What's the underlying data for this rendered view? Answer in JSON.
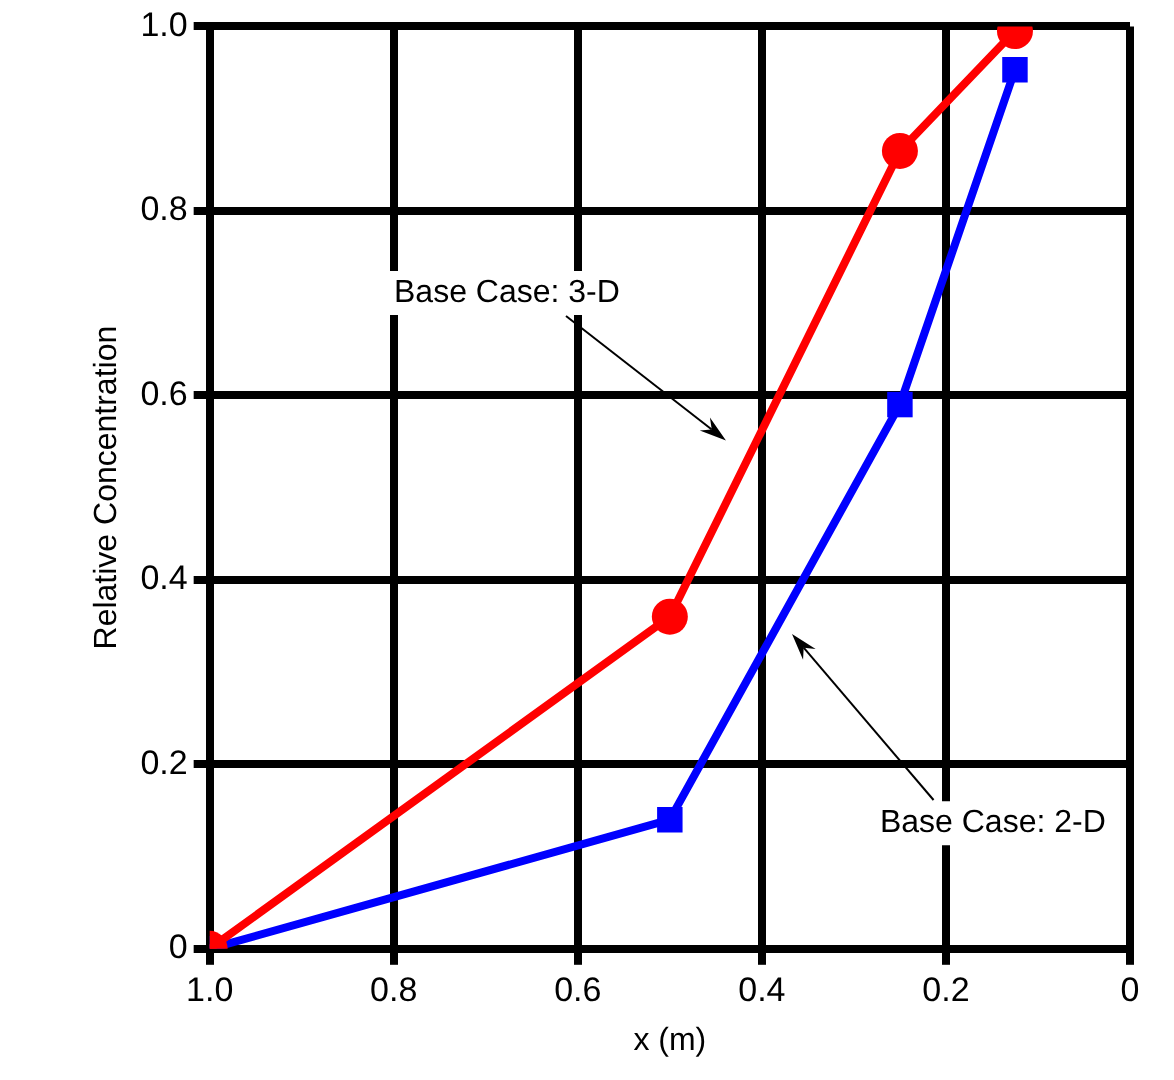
{
  "chart_data": {
    "type": "line",
    "xlabel": "x (m)",
    "ylabel": "Relative Concentration",
    "xlim": [
      1,
      0
    ],
    "ylim": [
      0,
      1
    ],
    "xticks": [
      {
        "value": 1,
        "label": "1.0"
      },
      0.8,
      0.6,
      0.4,
      0.2,
      0
    ],
    "yticks": [
      0,
      0.2,
      0.4,
      0.6,
      0.8,
      {
        "value": 1,
        "label": "1.0"
      }
    ],
    "series": [
      {
        "color": "#ff0000",
        "marker": "circle",
        "x": [
          1,
          0.5,
          0.25,
          0.125
        ],
        "values": [
          0,
          0.36,
          0.865,
          0.995
        ]
      },
      {
        "color": "#0000ff",
        "marker": "square",
        "x": [
          1,
          0.5,
          0.25,
          0.125
        ],
        "values": [
          0,
          0.14,
          0.59,
          0.953
        ]
      }
    ],
    "annotations": [
      "Base Case: 3-D",
      "Base Case: 2-D"
    ],
    "grid": true,
    "legend": false
  }
}
